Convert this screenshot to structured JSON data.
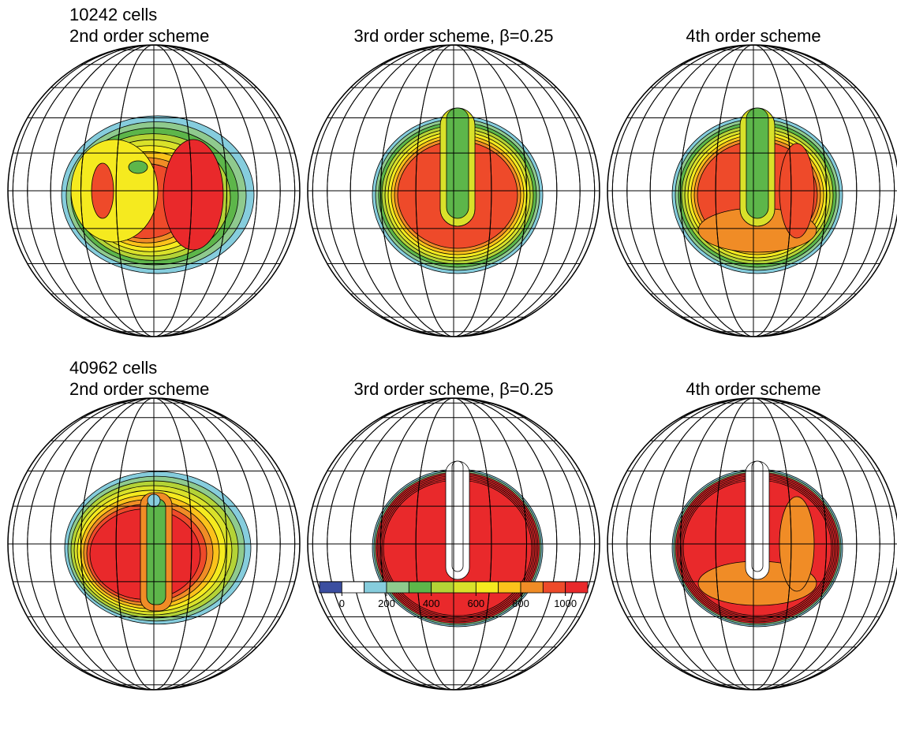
{
  "rows": [
    {
      "label": "10242 cells",
      "panels": [
        {
          "title": "2nd order scheme"
        },
        {
          "title": "3rd order scheme, β=0.25"
        },
        {
          "title": "4th order scheme"
        }
      ]
    },
    {
      "label": "40962 cells",
      "panels": [
        {
          "title": "2nd order scheme"
        },
        {
          "title": "3rd order scheme, β=0.25"
        },
        {
          "title": "4th order scheme"
        }
      ]
    }
  ],
  "colorbar": {
    "colors": [
      "#3b4ea0",
      "#ffffff",
      "#86cddd",
      "#8fca8e",
      "#5db64a",
      "#b4d336",
      "#d9e12a",
      "#f5ea1f",
      "#fbc21b",
      "#f08c26",
      "#ee4a2a",
      "#e9292b"
    ],
    "range": [
      -100,
      1100
    ],
    "ticks": [
      0,
      200,
      400,
      600,
      800,
      1000
    ]
  }
}
